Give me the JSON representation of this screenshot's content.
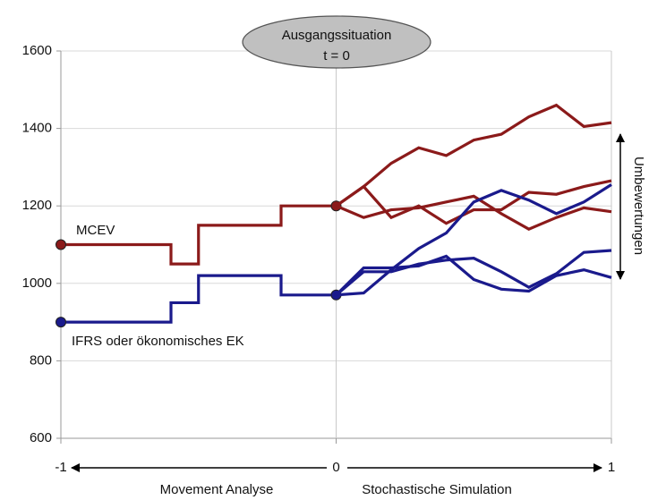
{
  "chart_data": {
    "type": "line",
    "xlim": [
      -1,
      1
    ],
    "xticks": [
      -1,
      0,
      1
    ],
    "ylim": [
      600,
      1600
    ],
    "yticks": [
      600,
      800,
      1000,
      1200,
      1400,
      1600
    ],
    "grid": true,
    "callout": [
      "Ausgangssituation",
      "t = 0"
    ],
    "right_label": "Umbewertungen",
    "x_sections": [
      "Movement Analyse",
      "Stochastische Simulation"
    ],
    "series": [
      {
        "name": "MCEV",
        "color": "#8b1a1a",
        "step": "post",
        "marker": true,
        "x": [
          -1,
          -0.6,
          -0.5,
          -0.2,
          0
        ],
        "values": [
          1100,
          1050,
          1150,
          1200,
          1200
        ]
      },
      {
        "name": "IFRS oder ökonomisches EK",
        "color": "#1a1a8c",
        "step": "post",
        "marker": true,
        "x": [
          -1,
          -0.6,
          -0.5,
          -0.2,
          0
        ],
        "values": [
          900,
          950,
          1020,
          970,
          970
        ]
      },
      {
        "color": "#8b1a1a",
        "x": [
          0,
          0.1,
          0.2,
          0.3,
          0.4,
          0.5,
          0.6,
          0.7,
          0.8,
          0.9,
          1
        ],
        "values": [
          1200,
          1250,
          1310,
          1350,
          1330,
          1370,
          1385,
          1430,
          1460,
          1405,
          1415
        ]
      },
      {
        "color": "#8b1a1a",
        "x": [
          0,
          0.1,
          0.2,
          0.3,
          0.4,
          0.5,
          0.6,
          0.7,
          0.8,
          0.9,
          1
        ],
        "values": [
          1200,
          1250,
          1170,
          1200,
          1155,
          1190,
          1190,
          1235,
          1230,
          1250,
          1265
        ]
      },
      {
        "color": "#8b1a1a",
        "x": [
          0,
          0.1,
          0.2,
          0.3,
          0.4,
          0.5,
          0.6,
          0.7,
          0.8,
          0.9,
          1
        ],
        "values": [
          1200,
          1170,
          1190,
          1195,
          1210,
          1225,
          1180,
          1140,
          1170,
          1195,
          1185
        ]
      },
      {
        "color": "#1a1a8c",
        "x": [
          0,
          0.1,
          0.2,
          0.3,
          0.4,
          0.5,
          0.6,
          0.7,
          0.8,
          0.9,
          1
        ],
        "values": [
          970,
          975,
          1035,
          1090,
          1130,
          1210,
          1240,
          1215,
          1180,
          1210,
          1255
        ]
      },
      {
        "color": "#1a1a8c",
        "x": [
          0,
          0.1,
          0.2,
          0.3,
          0.4,
          0.5,
          0.6,
          0.7,
          0.8,
          0.9,
          1
        ],
        "values": [
          970,
          1030,
          1030,
          1050,
          1060,
          1065,
          1030,
          990,
          1025,
          1080,
          1085
        ]
      },
      {
        "color": "#1a1a8c",
        "x": [
          0,
          0.1,
          0.2,
          0.3,
          0.4,
          0.5,
          0.6,
          0.7,
          0.8,
          0.9,
          1
        ],
        "values": [
          970,
          1040,
          1040,
          1045,
          1070,
          1010,
          985,
          980,
          1020,
          1035,
          1015
        ]
      }
    ]
  }
}
